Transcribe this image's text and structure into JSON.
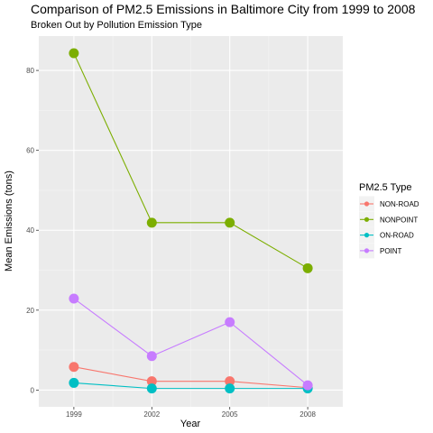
{
  "chart_data": {
    "type": "line",
    "title": "Comparison of PM2.5 Emissions in Baltimore City from 1999 to 2008",
    "subtitle": "Broken Out by Pollution Emission Type",
    "xlabel": "Year",
    "ylabel": "Mean Emissions (tons)",
    "x": [
      1999,
      2002,
      2005,
      2008
    ],
    "xticks": [
      "1999",
      "2002",
      "2005",
      "2008"
    ],
    "yticks": [
      0,
      20,
      40,
      60,
      80
    ],
    "ylim": [
      -4.2,
      88.6
    ],
    "grid": true,
    "legend": {
      "title": "PM2.5 Type",
      "placement": "right"
    },
    "series": [
      {
        "name": "NON-ROAD",
        "color": "#F8766D",
        "values": [
          5.8,
          2.2,
          2.2,
          0.6
        ]
      },
      {
        "name": "NONPOINT",
        "color": "#7CAE00",
        "values": [
          84.3,
          41.9,
          41.9,
          30.5
        ]
      },
      {
        "name": "ON-ROAD",
        "color": "#00BFC4",
        "values": [
          1.8,
          0.4,
          0.4,
          0.4
        ]
      },
      {
        "name": "POINT",
        "color": "#C77CFF",
        "values": [
          22.9,
          8.5,
          17.0,
          1.2
        ]
      }
    ]
  }
}
